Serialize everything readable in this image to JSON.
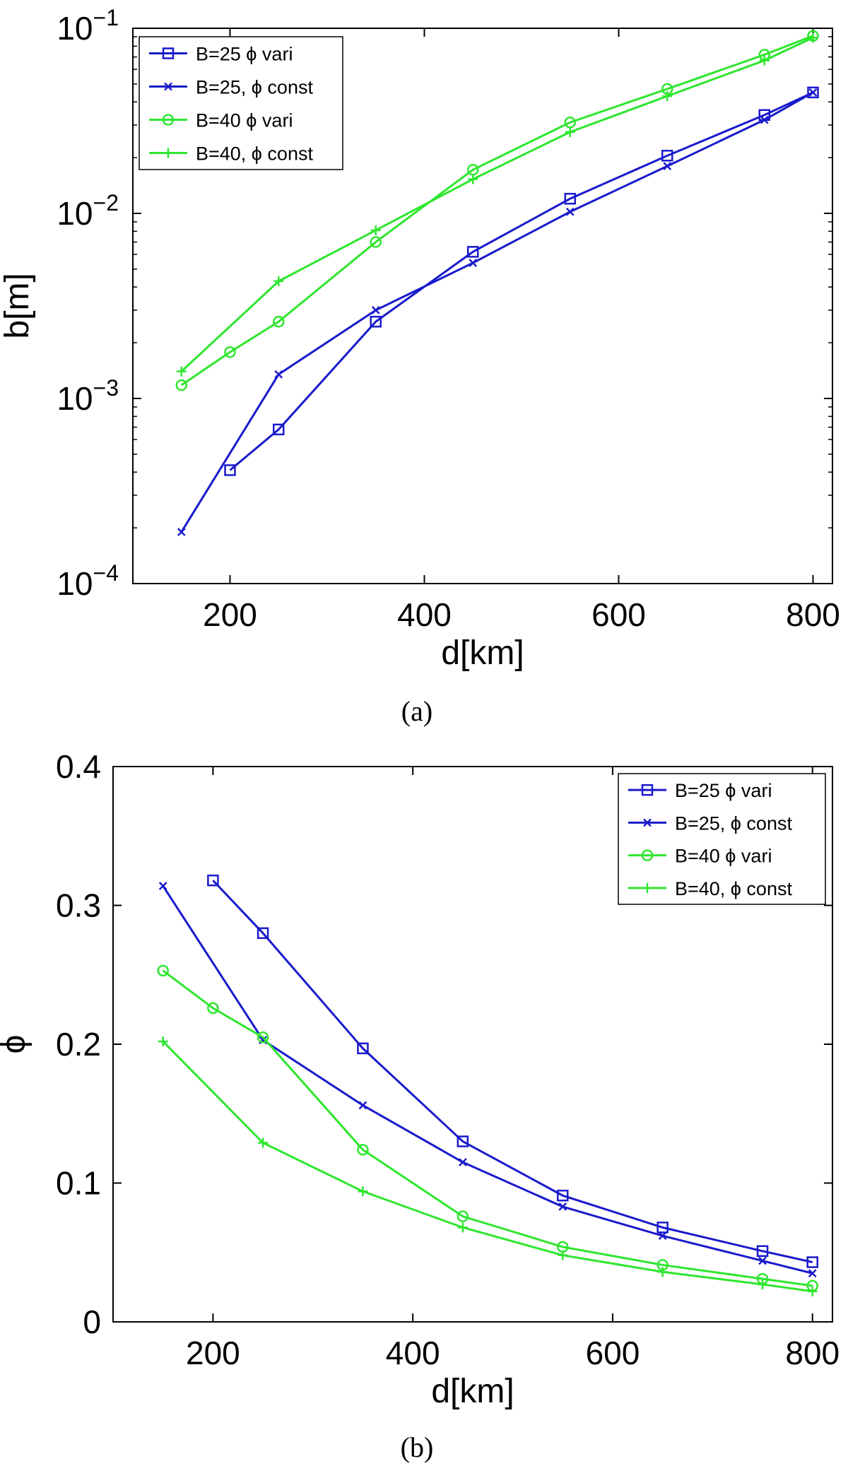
{
  "chart_data": [
    {
      "type": "line",
      "caption": "(a)",
      "xlabel": "d[km]",
      "ylabel": "b[m]",
      "yscale": "log",
      "xlim": [
        100,
        820
      ],
      "ylim": [
        0.0001,
        0.1
      ],
      "xticks": [
        200,
        400,
        600,
        800
      ],
      "xtick_labels": [
        "200",
        "400",
        "600",
        "800"
      ],
      "yticks": [
        0.0001,
        0.001,
        0.01,
        0.1
      ],
      "ytick_labels": [
        {
          "base": "10",
          "exp": "−4"
        },
        {
          "base": "10",
          "exp": "−3"
        },
        {
          "base": "10",
          "exp": "−2"
        },
        {
          "base": "10",
          "exp": "−1"
        }
      ],
      "legend_position": "top-left",
      "series": [
        {
          "name": "B=25 ϕ vari",
          "color": "#1a1acc",
          "marker": "square",
          "x": [
            200,
            250,
            350,
            450,
            550,
            650,
            750,
            800
          ],
          "y": [
            0.00041,
            0.00068,
            0.0026,
            0.0062,
            0.012,
            0.0205,
            0.034,
            0.045
          ]
        },
        {
          "name": "B=25, ϕ const",
          "color": "#1a1acc",
          "marker": "x",
          "x": [
            150,
            250,
            350,
            450,
            550,
            650,
            750,
            800
          ],
          "y": [
            0.00019,
            0.00135,
            0.003,
            0.0054,
            0.0102,
            0.018,
            0.032,
            0.045
          ]
        },
        {
          "name": "B=40 ϕ vari",
          "color": "#2ee62e",
          "marker": "circle",
          "x": [
            150,
            200,
            250,
            350,
            450,
            550,
            650,
            750,
            800
          ],
          "y": [
            0.00118,
            0.00178,
            0.0026,
            0.007,
            0.0172,
            0.031,
            0.047,
            0.072,
            0.091
          ]
        },
        {
          "name": "B=40, ϕ const",
          "color": "#2ee62e",
          "marker": "plus",
          "x": [
            150,
            250,
            350,
            450,
            550,
            650,
            750,
            800
          ],
          "y": [
            0.0014,
            0.0043,
            0.0081,
            0.0153,
            0.0275,
            0.043,
            0.067,
            0.089
          ]
        }
      ]
    },
    {
      "type": "line",
      "caption": "(b)",
      "xlabel": "d[km]",
      "ylabel": "ϕ",
      "yscale": "linear",
      "xlim": [
        100,
        820
      ],
      "ylim": [
        0,
        0.4
      ],
      "xticks": [
        200,
        400,
        600,
        800
      ],
      "xtick_labels": [
        "200",
        "400",
        "600",
        "800"
      ],
      "yticks": [
        0,
        0.1,
        0.2,
        0.3,
        0.4
      ],
      "ytick_labels": [
        "0",
        "0.1",
        "0.2",
        "0.3",
        "0.4"
      ],
      "legend_position": "top-right",
      "series": [
        {
          "name": "B=25 ϕ vari",
          "color": "#1a1acc",
          "marker": "square",
          "x": [
            200,
            250,
            350,
            450,
            550,
            650,
            750,
            800
          ],
          "y": [
            0.318,
            0.28,
            0.197,
            0.13,
            0.091,
            0.068,
            0.051,
            0.043
          ]
        },
        {
          "name": "B=25, ϕ const",
          "color": "#1a1acc",
          "marker": "x",
          "x": [
            150,
            250,
            350,
            450,
            550,
            650,
            750,
            800
          ],
          "y": [
            0.314,
            0.203,
            0.156,
            0.115,
            0.083,
            0.062,
            0.044,
            0.035
          ]
        },
        {
          "name": "B=40 ϕ vari",
          "color": "#2ee62e",
          "marker": "circle",
          "x": [
            150,
            200,
            250,
            350,
            450,
            550,
            650,
            750,
            800
          ],
          "y": [
            0.253,
            0.226,
            0.205,
            0.124,
            0.076,
            0.054,
            0.041,
            0.031,
            0.026
          ]
        },
        {
          "name": "B=40, ϕ const",
          "color": "#2ee62e",
          "marker": "plus",
          "x": [
            150,
            250,
            350,
            450,
            550,
            650,
            750,
            800
          ],
          "y": [
            0.202,
            0.129,
            0.094,
            0.068,
            0.048,
            0.036,
            0.027,
            0.022
          ]
        }
      ]
    }
  ]
}
